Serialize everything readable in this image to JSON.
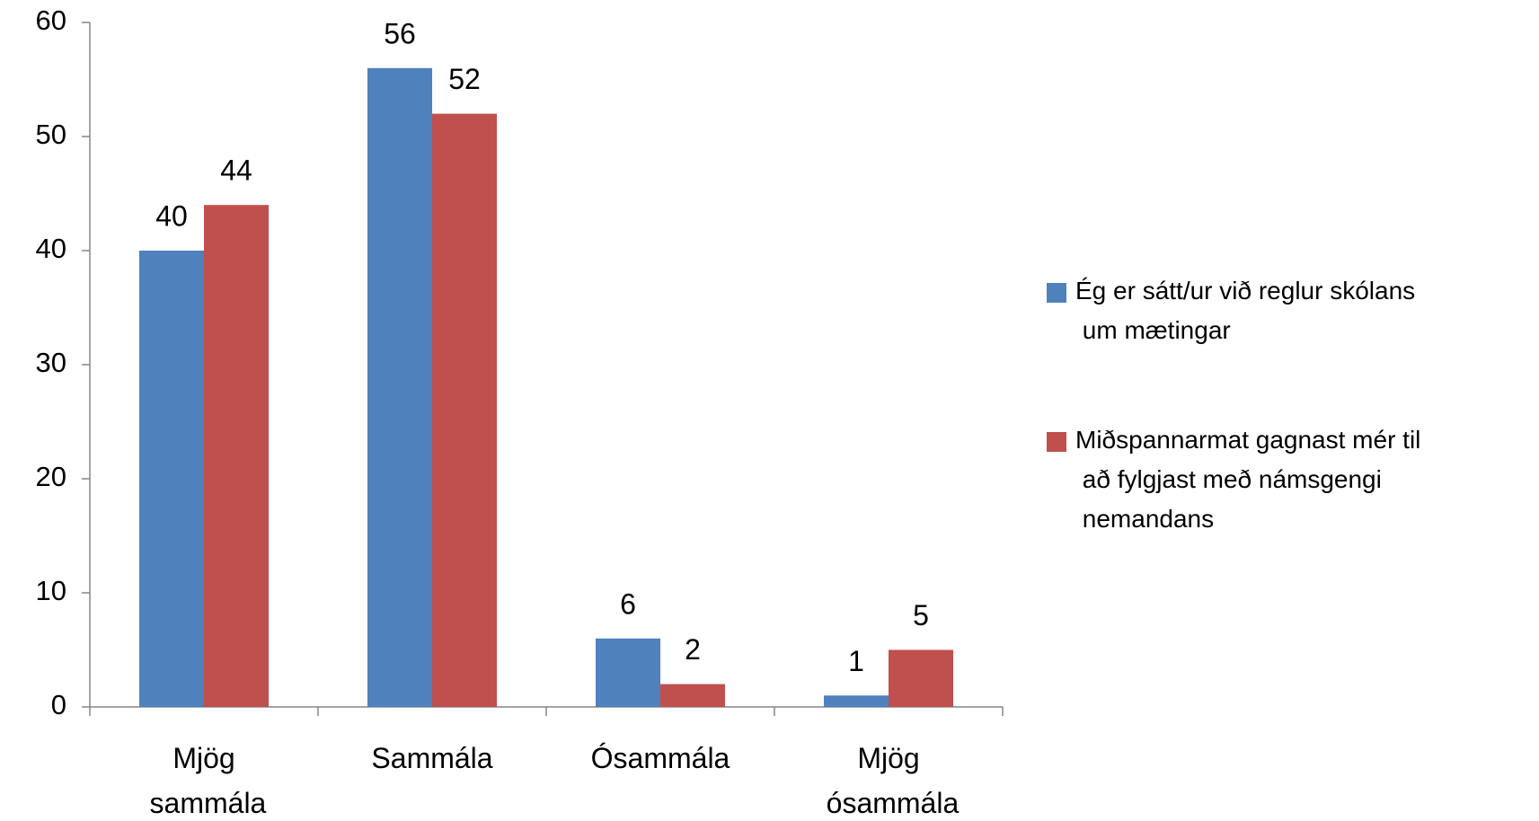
{
  "chart_data": {
    "type": "bar",
    "categories": [
      "Mjög sammála",
      "Sammála",
      "Ósammála",
      "Mjög ósammála"
    ],
    "series": [
      {
        "name": "Ég er sátt/ur við reglur skólans um mætingar",
        "color": "#4f81bd",
        "values": [
          40,
          56,
          6,
          1
        ]
      },
      {
        "name": "Miðspannarmat gagnast mér til að fylgjast með námsgengi nemandans",
        "color": "#c0504d",
        "values": [
          44,
          52,
          2,
          5
        ]
      }
    ],
    "ylim": [
      0,
      60
    ],
    "yticks": [
      0,
      10,
      20,
      30,
      40,
      50,
      60
    ],
    "grid": false,
    "legend": "right"
  }
}
